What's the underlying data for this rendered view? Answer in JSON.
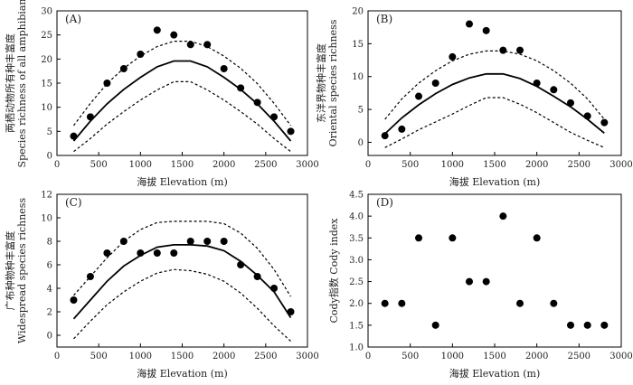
{
  "chart_data": [
    {
      "type": "scatter",
      "panel_label": "(A)",
      "xlabel": "海拔 Elevation (m)",
      "ylabel_lines": [
        "两栖动物所有种丰富度",
        "Species richness of all amphibian"
      ],
      "xlim": [
        0,
        3000
      ],
      "ylim": [
        0,
        30
      ],
      "xticks": [
        "0",
        "500",
        "1000",
        "1500",
        "2000",
        "2500",
        "3000"
      ],
      "yticks": [
        "0",
        "5",
        "10",
        "15",
        "20",
        "25",
        "30"
      ],
      "points": {
        "x": [
          200,
          400,
          600,
          800,
          1000,
          1200,
          1400,
          1600,
          1800,
          2000,
          2200,
          2400,
          2600,
          2800
        ],
        "y": [
          4,
          8,
          15,
          18,
          21,
          26,
          25,
          23,
          23,
          18,
          14,
          11,
          8,
          5
        ]
      },
      "fit": {
        "x": [
          200,
          400,
          600,
          800,
          1000,
          1200,
          1400,
          1600,
          1800,
          2000,
          2200,
          2400,
          2600,
          2800
        ],
        "y": [
          3,
          7.1,
          10.7,
          13.7,
          16.2,
          18.4,
          19.6,
          19.6,
          18.4,
          16.2,
          13.7,
          10.7,
          7.1,
          3
        ]
      },
      "upper": {
        "x": [
          200,
          400,
          600,
          800,
          1000,
          1200,
          1400,
          1600,
          1800,
          2000,
          2200,
          2400,
          2600,
          2800
        ],
        "y": [
          6.2,
          10.8,
          14.9,
          18.1,
          20.6,
          22.6,
          23.7,
          23.7,
          22.6,
          20.6,
          18.1,
          14.9,
          10.8,
          6.2
        ]
      },
      "lower": {
        "x": [
          200,
          400,
          600,
          800,
          1000,
          1200,
          1400,
          1600,
          1800,
          2000,
          2200,
          2400,
          2600,
          2800
        ],
        "y": [
          0.8,
          3.5,
          6.5,
          9.1,
          11.5,
          13.6,
          15.3,
          15.3,
          13.6,
          11.5,
          9.1,
          6.5,
          3.5,
          0.8
        ]
      }
    },
    {
      "type": "scatter",
      "panel_label": "(B)",
      "xlabel": "海拔 Elevation (m)",
      "ylabel_lines": [
        "东洋界物种丰富度",
        "Oriental species richness"
      ],
      "xlim": [
        0,
        3000
      ],
      "ylim": [
        -2,
        20
      ],
      "xticks": [
        "0",
        "500",
        "1000",
        "1500",
        "2000",
        "2500",
        "3000"
      ],
      "yticks": [
        "0",
        "5",
        "10",
        "15",
        "20"
      ],
      "points": {
        "x": [
          200,
          400,
          600,
          800,
          1000,
          1200,
          1400,
          1600,
          1800,
          2000,
          2200,
          2400,
          2600,
          2800
        ],
        "y": [
          1,
          2,
          7,
          9,
          13,
          18,
          17,
          14,
          14,
          9,
          8,
          6,
          4,
          3
        ]
      },
      "fit": {
        "x": [
          200,
          400,
          600,
          800,
          1000,
          1200,
          1400,
          1600,
          1800,
          2000,
          2200,
          2400,
          2600,
          2800
        ],
        "y": [
          1.3,
          3.7,
          5.7,
          7.4,
          8.8,
          9.8,
          10.4,
          10.4,
          9.7,
          8.5,
          7.0,
          5.4,
          3.5,
          1.4
        ]
      },
      "upper": {
        "x": [
          200,
          400,
          600,
          800,
          1000,
          1200,
          1400,
          1600,
          1800,
          2000,
          2200,
          2400,
          2600,
          2800
        ],
        "y": [
          3.5,
          6.6,
          9.0,
          10.9,
          12.4,
          13.4,
          13.9,
          13.9,
          13.4,
          12.4,
          10.9,
          9.0,
          6.6,
          3.5
        ]
      },
      "lower": {
        "x": [
          200,
          400,
          600,
          800,
          1000,
          1200,
          1400,
          1600,
          1800,
          2000,
          2200,
          2400,
          2600,
          2800
        ],
        "y": [
          -0.8,
          0.5,
          1.9,
          3.1,
          4.3,
          5.6,
          6.8,
          6.8,
          5.8,
          4.5,
          3.0,
          1.5,
          0.3,
          -0.8
        ]
      }
    },
    {
      "type": "scatter",
      "panel_label": "(C)",
      "xlabel": "海拔 Elevation (m)",
      "ylabel_lines": [
        "广布种物种丰富度",
        "Widespread species richness"
      ],
      "xlim": [
        0,
        3000
      ],
      "ylim": [
        -1,
        12
      ],
      "xticks": [
        "0",
        "500",
        "1000",
        "1500",
        "2000",
        "2500",
        "3000"
      ],
      "yticks": [
        "0",
        "2",
        "4",
        "6",
        "8",
        "10",
        "12"
      ],
      "points": {
        "x": [
          200,
          400,
          600,
          800,
          1000,
          1200,
          1400,
          1600,
          1800,
          2000,
          2200,
          2400,
          2600,
          2800
        ],
        "y": [
          3,
          5,
          7,
          8,
          7,
          7,
          7,
          8,
          8,
          8,
          6,
          5,
          4,
          2
        ]
      },
      "fit": {
        "x": [
          200,
          400,
          600,
          800,
          1000,
          1200,
          1400,
          1600,
          1800,
          2000,
          2200,
          2400,
          2600,
          2800
        ],
        "y": [
          1.4,
          3.0,
          4.6,
          5.9,
          6.8,
          7.5,
          7.7,
          7.7,
          7.6,
          7.2,
          6.3,
          5.1,
          3.7,
          1.5
        ]
      },
      "upper": {
        "x": [
          200,
          400,
          600,
          800,
          1000,
          1200,
          1400,
          1600,
          1800,
          2000,
          2200,
          2400,
          2600,
          2800
        ],
        "y": [
          3.4,
          5.0,
          6.6,
          8.0,
          9.0,
          9.6,
          9.7,
          9.7,
          9.7,
          9.5,
          8.7,
          7.4,
          5.6,
          3.3
        ]
      },
      "lower": {
        "x": [
          200,
          400,
          600,
          800,
          1000,
          1200,
          1400,
          1600,
          1800,
          2000,
          2200,
          2400,
          2600,
          2800
        ],
        "y": [
          -0.3,
          1.2,
          2.6,
          3.7,
          4.6,
          5.3,
          5.6,
          5.5,
          5.2,
          4.6,
          3.6,
          2.3,
          0.8,
          -0.5
        ]
      }
    },
    {
      "type": "scatter",
      "panel_label": "(D)",
      "xlabel": "海拔 Elevation (m)",
      "ylabel_lines": [
        "Cody指数 Cody index"
      ],
      "xlim": [
        0,
        3000
      ],
      "ylim": [
        1.0,
        4.5
      ],
      "xticks": [
        "0",
        "500",
        "1000",
        "1500",
        "2000",
        "2500",
        "3000"
      ],
      "yticks": [
        "1.0",
        "1.5",
        "2.0",
        "2.5",
        "3.0",
        "3.5",
        "4.0",
        "4.5"
      ],
      "points": {
        "x": [
          200,
          400,
          600,
          800,
          1000,
          1200,
          1400,
          1600,
          1800,
          2000,
          2200,
          2400,
          2600,
          2800
        ],
        "y": [
          2.0,
          2.0,
          3.5,
          1.5,
          3.5,
          2.5,
          2.5,
          4.0,
          2.0,
          3.5,
          2.0,
          1.5,
          1.5,
          1.5
        ]
      }
    }
  ]
}
